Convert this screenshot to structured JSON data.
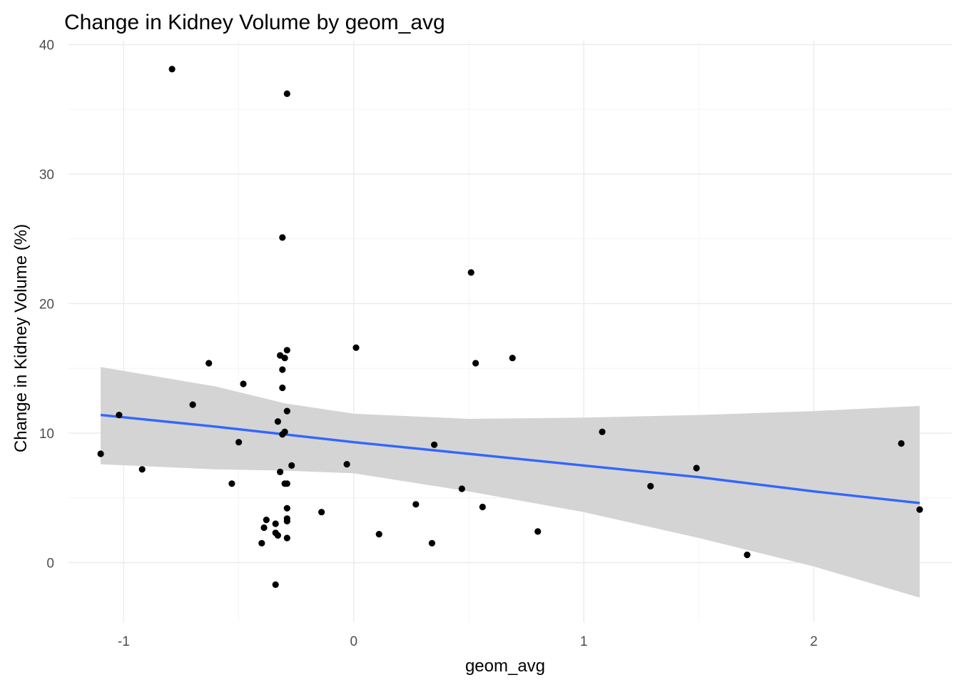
{
  "chart_data": {
    "type": "scatter",
    "title": "Change in Kidney Volume by geom_avg",
    "xlabel": "geom_avg",
    "ylabel": "Change in Kidney Volume (%)",
    "xlim": [
      -1.24,
      2.6
    ],
    "ylim": [
      -4.6,
      40.3
    ],
    "x_ticks": [
      -1,
      0,
      1,
      2
    ],
    "x_tick_labels": [
      "-1",
      "0",
      "1",
      "2"
    ],
    "y_ticks": [
      0,
      10,
      20,
      30,
      40
    ],
    "y_tick_labels": [
      "0",
      "10",
      "20",
      "30",
      "40"
    ],
    "grid": true,
    "point_color": "#000000",
    "points": [
      {
        "x": -0.79,
        "y": 38.1
      },
      {
        "x": -0.29,
        "y": 36.2
      },
      {
        "x": -0.31,
        "y": 25.1
      },
      {
        "x": 0.51,
        "y": 22.4
      },
      {
        "x": 0.01,
        "y": 16.6
      },
      {
        "x": -0.29,
        "y": 16.4
      },
      {
        "x": -0.32,
        "y": 16.0
      },
      {
        "x": -0.3,
        "y": 15.8
      },
      {
        "x": 0.69,
        "y": 15.8
      },
      {
        "x": 0.53,
        "y": 15.4
      },
      {
        "x": -0.63,
        "y": 15.4
      },
      {
        "x": -0.31,
        "y": 14.9
      },
      {
        "x": -0.48,
        "y": 13.8
      },
      {
        "x": -0.31,
        "y": 13.5
      },
      {
        "x": -0.7,
        "y": 12.2
      },
      {
        "x": -0.29,
        "y": 11.7
      },
      {
        "x": -1.02,
        "y": 11.4
      },
      {
        "x": -0.33,
        "y": 10.9
      },
      {
        "x": 1.08,
        "y": 10.1
      },
      {
        "x": -0.3,
        "y": 10.1
      },
      {
        "x": -0.31,
        "y": 9.9
      },
      {
        "x": -0.5,
        "y": 9.3
      },
      {
        "x": 2.38,
        "y": 9.2
      },
      {
        "x": 0.35,
        "y": 9.1
      },
      {
        "x": -1.1,
        "y": 8.4
      },
      {
        "x": -0.03,
        "y": 7.6
      },
      {
        "x": -0.27,
        "y": 7.5
      },
      {
        "x": 1.49,
        "y": 7.3
      },
      {
        "x": -0.92,
        "y": 7.2
      },
      {
        "x": -0.32,
        "y": 7.0
      },
      {
        "x": -0.53,
        "y": 6.1
      },
      {
        "x": -0.3,
        "y": 6.1
      },
      {
        "x": -0.29,
        "y": 6.1
      },
      {
        "x": 1.29,
        "y": 5.9
      },
      {
        "x": 0.47,
        "y": 5.7
      },
      {
        "x": 0.27,
        "y": 4.5
      },
      {
        "x": 0.56,
        "y": 4.3
      },
      {
        "x": -0.29,
        "y": 4.2
      },
      {
        "x": 2.46,
        "y": 4.1
      },
      {
        "x": -0.14,
        "y": 3.9
      },
      {
        "x": -0.29,
        "y": 3.4
      },
      {
        "x": -0.38,
        "y": 3.3
      },
      {
        "x": -0.29,
        "y": 3.2
      },
      {
        "x": -0.34,
        "y": 3.0
      },
      {
        "x": -0.39,
        "y": 2.7
      },
      {
        "x": 0.8,
        "y": 2.4
      },
      {
        "x": -0.34,
        "y": 2.3
      },
      {
        "x": 0.11,
        "y": 2.2
      },
      {
        "x": -0.33,
        "y": 2.1
      },
      {
        "x": -0.29,
        "y": 1.9
      },
      {
        "x": -0.4,
        "y": 1.5
      },
      {
        "x": 0.34,
        "y": 1.5
      },
      {
        "x": 1.71,
        "y": 0.6
      },
      {
        "x": -0.34,
        "y": -1.7
      }
    ],
    "trend_line": {
      "type": "linear-fit",
      "color": "#3366ff",
      "band_color": "#d4d4d4",
      "x": [
        -1.1,
        -0.6,
        -0.3,
        0.0,
        0.5,
        1.0,
        1.5,
        2.0,
        2.46
      ],
      "y": [
        11.4,
        10.5,
        9.9,
        9.3,
        8.4,
        7.5,
        6.6,
        5.5,
        4.6
      ],
      "lower": [
        7.6,
        7.2,
        7.1,
        6.9,
        5.5,
        3.9,
        1.9,
        -0.3,
        -2.7
      ],
      "upper": [
        15.1,
        13.6,
        12.3,
        11.5,
        11.1,
        11.2,
        11.4,
        11.7,
        12.1
      ]
    }
  }
}
